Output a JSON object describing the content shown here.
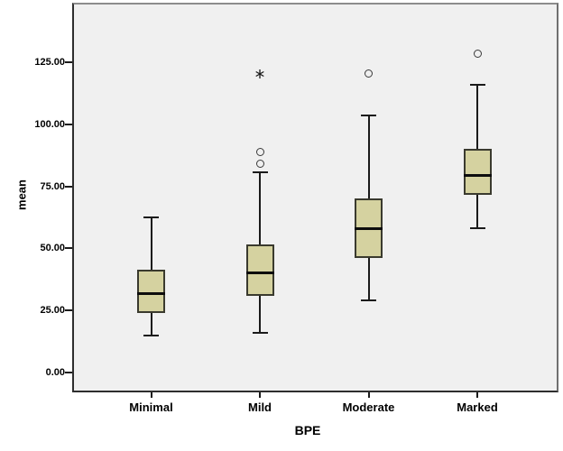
{
  "chart_data": {
    "type": "boxplot",
    "title": "",
    "xlabel": "BPE",
    "ylabel": "mean",
    "categories": [
      "Minimal",
      "Mild",
      "Moderate",
      "Marked"
    ],
    "y_axis": {
      "tick_labels": [
        "0.00",
        "25.00",
        "50.00",
        "75.00",
        "100.00",
        "125.00"
      ],
      "tick_values": [
        0,
        25,
        50,
        75,
        100,
        125
      ],
      "range_min": -7.5,
      "range_max": 148
    },
    "grid": "off",
    "legend": "none",
    "series": [
      {
        "category": "Minimal",
        "whisker_low": 15,
        "q1": 24,
        "median": 32,
        "q3": 41.5,
        "whisker_high": 62.5,
        "outliers": [],
        "extremes": []
      },
      {
        "category": "Mild",
        "whisker_low": 16,
        "q1": 31,
        "median": 40.5,
        "q3": 51.5,
        "whisker_high": 80.5,
        "outliers": [
          84,
          89
        ],
        "extremes": [
          120.5
        ]
      },
      {
        "category": "Moderate",
        "whisker_low": 29,
        "q1": 46,
        "median": 58,
        "q3": 70,
        "whisker_high": 103.5,
        "outliers": [
          120.5
        ],
        "extremes": []
      },
      {
        "category": "Marked",
        "whisker_low": 58,
        "q1": 71.5,
        "median": 79.5,
        "q3": 90,
        "whisker_high": 116,
        "outliers": [
          128.5
        ],
        "extremes": []
      }
    ],
    "colors": {
      "box_fill": "#d5d2a0",
      "box_border": "#3a3a2e",
      "median": "#0d0d0d",
      "whisker": "#1a1a1a",
      "outlier_stroke": "#3a3a3a",
      "plot_background": "#f0f0f0",
      "page_background": "#ffffff"
    }
  }
}
